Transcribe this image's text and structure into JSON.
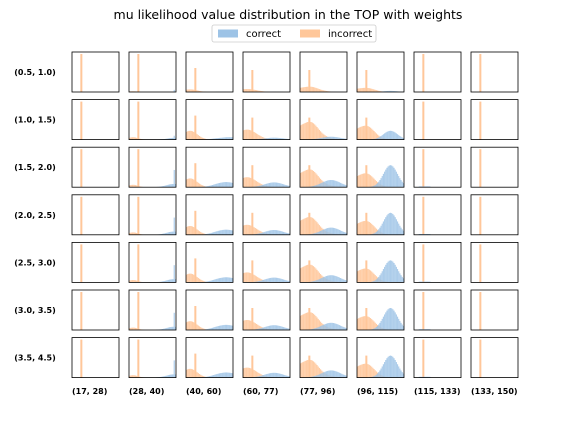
{
  "chart_data": {
    "type": "histogram-grid",
    "title": "mu likelihood value distribution in the TOP with weights",
    "legend": {
      "placement": "top-center",
      "entries": [
        {
          "name": "correct",
          "color": "#9dc3e6"
        },
        {
          "name": "incorrect",
          "color": "#ffc79a"
        }
      ]
    },
    "rows": [
      "(0.5, 1.0)",
      "(1.0, 1.5)",
      "(1.5, 2.0)",
      "(2.0, 2.5)",
      "(2.5, 3.0)",
      "(3.0, 3.5)",
      "(3.5, 4.5)"
    ],
    "columns": [
      "(17, 28)",
      "(28, 40)",
      "(40, 60)",
      "(60, 77)",
      "(77, 96)",
      "(96, 115)",
      "(115, 133)",
      "(133, 150)"
    ],
    "xlim": [
      0,
      1
    ],
    "ticks_visible": false
  }
}
